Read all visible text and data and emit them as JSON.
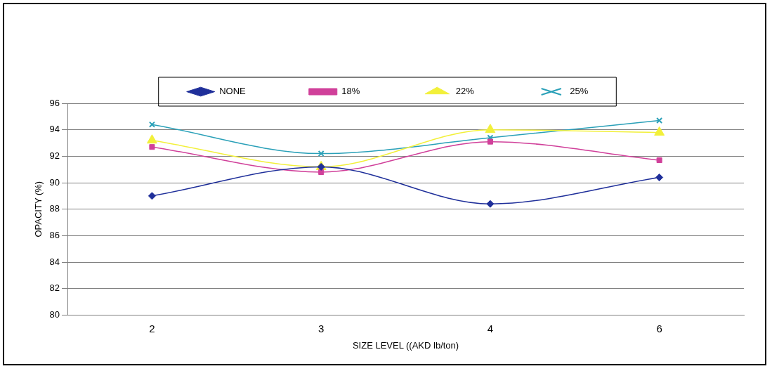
{
  "chart_data": {
    "type": "line",
    "xlabel": "SIZE LEVEL ((AKD lb/ton)",
    "ylabel": "OPACITY (%)",
    "categories": [
      "2",
      "3",
      "4",
      "6"
    ],
    "series": [
      {
        "name": "NONE",
        "color": "#1f2f9a",
        "marker": "diamond",
        "values": [
          89.0,
          91.2,
          88.4,
          90.4
        ]
      },
      {
        "name": "18%",
        "color": "#d0409a",
        "marker": "square",
        "values": [
          92.7,
          90.8,
          93.1,
          91.7
        ]
      },
      {
        "name": "22%",
        "color": "#f2f03a",
        "marker": "triangle",
        "values": [
          93.2,
          91.2,
          94.0,
          93.8
        ]
      },
      {
        "name": "25%",
        "color": "#2aa0b8",
        "marker": "cross",
        "values": [
          94.4,
          92.2,
          93.4,
          94.7
        ]
      }
    ],
    "ylim": [
      80,
      96
    ],
    "yticks": [
      80,
      82,
      84,
      86,
      88,
      90,
      92,
      94,
      96
    ],
    "grid": "y",
    "legend": "top"
  }
}
